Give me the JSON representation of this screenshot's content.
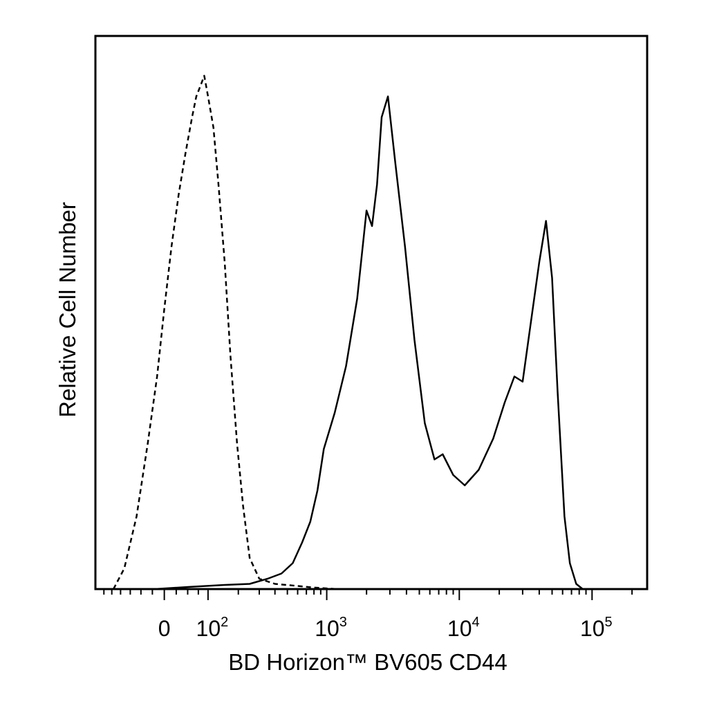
{
  "chart_data": {
    "type": "line",
    "title": "",
    "xlabel": "BD Horizon™ BV605 CD44",
    "ylabel": "Relative Cell Number",
    "x_scale": "biexponential",
    "xlim": [
      -180,
      260000
    ],
    "ylim": [
      0,
      100
    ],
    "grid": false,
    "legend": "none",
    "tick_labels": [
      {
        "value": 0,
        "base": "0",
        "exp": ""
      },
      {
        "value": 100,
        "base": "10",
        "exp": "2"
      },
      {
        "value": 1000,
        "base": "10",
        "exp": "3"
      },
      {
        "value": 10000,
        "base": "10",
        "exp": "4"
      },
      {
        "value": 100000,
        "base": "10",
        "exp": "5"
      }
    ],
    "series": [
      {
        "style": "dashed",
        "color": "#000000",
        "points": [
          [
            -120,
            0
          ],
          [
            -90,
            4
          ],
          [
            -60,
            14
          ],
          [
            -35,
            28
          ],
          [
            -15,
            41
          ],
          [
            0,
            54
          ],
          [
            15,
            66
          ],
          [
            30,
            76
          ],
          [
            45,
            84
          ],
          [
            60,
            91
          ],
          [
            70,
            95
          ],
          [
            80,
            97
          ],
          [
            90,
            99
          ],
          [
            100,
            95
          ],
          [
            115,
            89
          ],
          [
            130,
            78
          ],
          [
            150,
            63
          ],
          [
            170,
            45
          ],
          [
            195,
            28
          ],
          [
            220,
            16
          ],
          [
            250,
            6
          ],
          [
            300,
            2
          ],
          [
            400,
            1
          ],
          [
            600,
            0.6
          ],
          [
            800,
            0.3
          ],
          [
            1200,
            0
          ]
        ]
      },
      {
        "style": "solid",
        "color": "#000000",
        "points": [
          [
            -20,
            0
          ],
          [
            50,
            0.4
          ],
          [
            150,
            0.8
          ],
          [
            250,
            1
          ],
          [
            350,
            2
          ],
          [
            450,
            3
          ],
          [
            550,
            5
          ],
          [
            650,
            9
          ],
          [
            750,
            13
          ],
          [
            850,
            19
          ],
          [
            950,
            27
          ],
          [
            1150,
            34
          ],
          [
            1400,
            43
          ],
          [
            1700,
            56
          ],
          [
            2000,
            73
          ],
          [
            2200,
            70
          ],
          [
            2400,
            78
          ],
          [
            2600,
            91
          ],
          [
            2900,
            95
          ],
          [
            3300,
            82
          ],
          [
            3900,
            66
          ],
          [
            4600,
            48
          ],
          [
            5500,
            32
          ],
          [
            6500,
            25
          ],
          [
            7500,
            26
          ],
          [
            9000,
            22
          ],
          [
            11000,
            20
          ],
          [
            14000,
            23
          ],
          [
            18000,
            29
          ],
          [
            22000,
            36
          ],
          [
            26000,
            41
          ],
          [
            30000,
            40
          ],
          [
            34000,
            50
          ],
          [
            40000,
            63
          ],
          [
            45000,
            71
          ],
          [
            50000,
            60
          ],
          [
            55000,
            38
          ],
          [
            62000,
            14
          ],
          [
            68000,
            5
          ],
          [
            76000,
            1
          ],
          [
            85000,
            0
          ]
        ]
      }
    ]
  }
}
